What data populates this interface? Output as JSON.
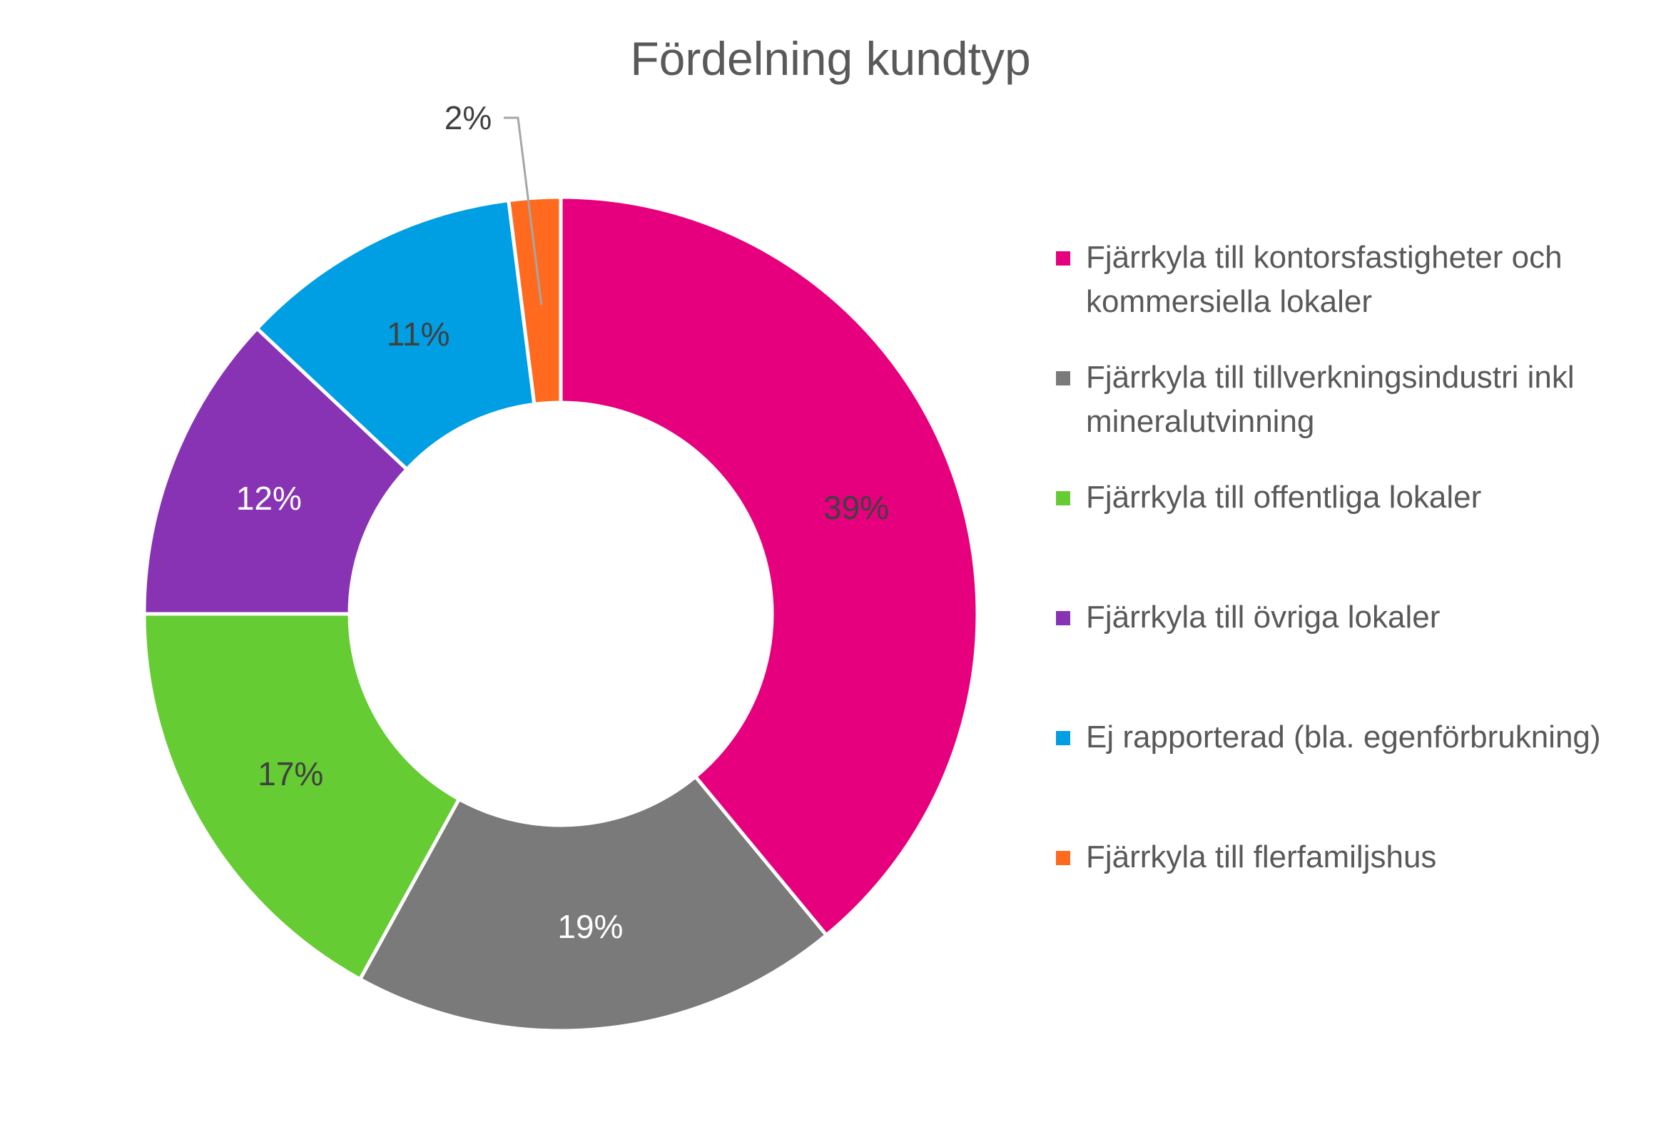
{
  "chart_data": {
    "type": "pie",
    "variant": "donut",
    "title": "Fördelning kundtyp",
    "legend_position": "right",
    "slices": [
      {
        "label": "Fjärrkyla till kontorsfastigheter och kommersiella lokaler",
        "value": 39,
        "value_label": "39%",
        "color": "#E6007E",
        "label_color": "#404040"
      },
      {
        "label": "Fjärrkyla till tillverkningsindustri inkl mineralutvinning",
        "value": 19,
        "value_label": "19%",
        "color": "#7A7A7A",
        "label_color": "#FFFFFF"
      },
      {
        "label": "Fjärrkyla till offentliga lokaler",
        "value": 17,
        "value_label": "17%",
        "color": "#66CC33",
        "label_color": "#404040"
      },
      {
        "label": "Fjärrkyla till övriga lokaler",
        "value": 12,
        "value_label": "12%",
        "color": "#8833B3",
        "label_color": "#FFFFFF"
      },
      {
        "label": "Ej rapporterad (bla. egenförbrukning)",
        "value": 11,
        "value_label": "11%",
        "color": "#009FE3",
        "label_color": "#404040"
      },
      {
        "label": "Fjärrkyla till flerfamiljshus",
        "value": 2,
        "value_label": "2%",
        "color": "#FF6A1F",
        "label_color": "#404040"
      }
    ]
  }
}
